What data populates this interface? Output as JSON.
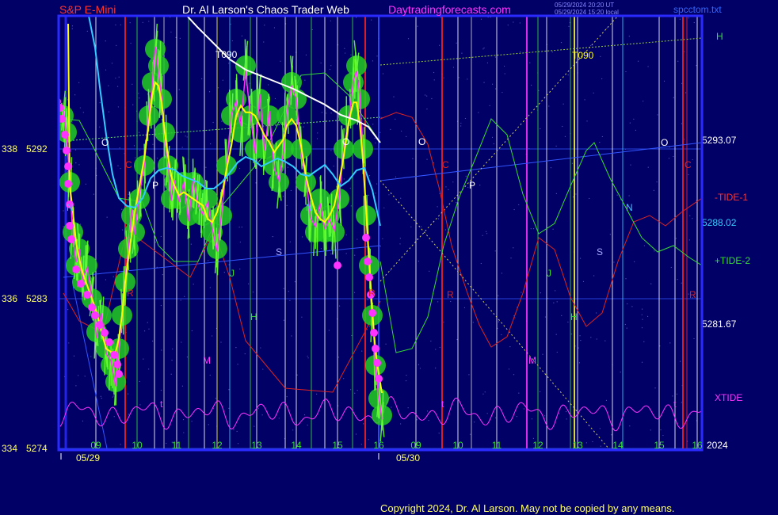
{
  "header": {
    "left": "S&P E-Mini",
    "center": "Dr. Al Larson's Chaos Trader Web",
    "site": "Daytradingforecasts.com",
    "ut_time": "05/29/2024 20:20 UT",
    "local_time": "05/29/2024 15:20 local",
    "file": "spcctom.txt"
  },
  "copyright": "Copyright 2024, Dr. Al Larson. May not be copied by any means.",
  "colors": {
    "background": "#000066",
    "frame": "#2a2aff",
    "price_yellow": "#ffff00",
    "ema_cyan": "#33ccff",
    "magenta": "#ff33ff",
    "glow_green": "#22cc22",
    "tide1_red": "#dd2222",
    "tide2_green": "#33dd33",
    "white": "#ffffff"
  },
  "chart_data": {
    "type": "line",
    "title": "S&P E-Mini",
    "ylim": [
      5274,
      5300
    ],
    "x_axis": {
      "day1_label": "05/29",
      "day2_label": "05/30",
      "hour_ticks": [
        "09",
        "10",
        "11",
        "12",
        "13",
        "14",
        "15",
        "16",
        "09",
        "10",
        "11",
        "12",
        "13",
        "14",
        "15",
        "16"
      ],
      "corner_label": "2024"
    },
    "y_axis_left": [
      {
        "square": "338",
        "price": "5292"
      },
      {
        "square": "336",
        "price": "5283"
      },
      {
        "square": "334",
        "price": "5274"
      }
    ],
    "right_labels": [
      {
        "text": "H",
        "color": "#33dd33"
      },
      {
        "text": "5293.07",
        "color": "#ffffff"
      },
      {
        "text": "-TIDE-1",
        "color": "#ff3333"
      },
      {
        "text": "5288.02",
        "color": "#33ccff"
      },
      {
        "text": "+TIDE-2",
        "color": "#33dd33"
      },
      {
        "text": "5281.67",
        "color": "#ffffff"
      },
      {
        "text": "XTIDE",
        "color": "#ff33ff"
      }
    ],
    "chart_labels": [
      {
        "text": "T090",
        "color": "#ffffff"
      },
      {
        "text": "T090",
        "color": "#ffff00"
      },
      {
        "text": "O",
        "color": "#ffffff"
      },
      {
        "text": "O",
        "color": "#ffffff"
      },
      {
        "text": "O",
        "color": "#ffffff"
      },
      {
        "text": "O",
        "color": "#ffffff"
      },
      {
        "text": "C",
        "color": "#dd2222"
      },
      {
        "text": "C",
        "color": "#dd2222"
      },
      {
        "text": "C",
        "color": "#dd2222"
      },
      {
        "text": "P",
        "color": "#ffffff"
      },
      {
        "text": "P",
        "color": "#ffffff"
      },
      {
        "text": "N",
        "color": "#33ccff"
      },
      {
        "text": "N",
        "color": "#33ccff"
      },
      {
        "text": "N",
        "color": "#33ccff"
      },
      {
        "text": "S",
        "color": "#aaaaff"
      },
      {
        "text": "S",
        "color": "#aaaaff"
      },
      {
        "text": "J",
        "color": "#33dd33"
      },
      {
        "text": "J",
        "color": "#33dd33"
      },
      {
        "text": "J",
        "color": "#33dd33"
      },
      {
        "text": "H",
        "color": "#33dd33"
      },
      {
        "text": "H",
        "color": "#33dd33"
      },
      {
        "text": "R",
        "color": "#dd2222"
      },
      {
        "text": "R",
        "color": "#dd2222"
      },
      {
        "text": "R",
        "color": "#dd2222"
      },
      {
        "text": "R",
        "color": "#dd2222"
      },
      {
        "text": "M",
        "color": "#ff33ff"
      },
      {
        "text": "M",
        "color": "#ff33ff"
      },
      {
        "text": "t",
        "color": "#ff33ff"
      },
      {
        "text": "t",
        "color": "#ff33ff"
      },
      {
        "text": "t",
        "color": "#ff33ff"
      }
    ],
    "grid": true,
    "legend": "right"
  }
}
